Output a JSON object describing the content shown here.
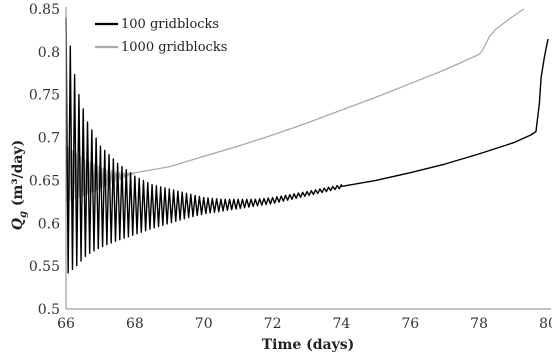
{
  "chart_data": {
    "type": "line",
    "title": "",
    "xlabel": "Time (days)",
    "ylabel_main": "Q",
    "ylabel_sub": "g",
    "ylabel_unit": " (m³/day)",
    "xlim": [
      66,
      80
    ],
    "ylim": [
      0.5,
      0.85
    ],
    "x_ticks": [
      "66",
      "68",
      "70",
      "72",
      "74",
      "76",
      "78",
      "80"
    ],
    "y_ticks": [
      "0.5",
      "0.55",
      "0.6",
      "0.65",
      "0.7",
      "0.75",
      "0.8",
      "0.85"
    ],
    "grid": false,
    "legend_position": "top-left",
    "series": [
      {
        "name": "100 gridblocks",
        "color": "#000000",
        "style": "oscillating",
        "period": 0.125,
        "upper": [
          [
            66.0,
            0.84
          ],
          [
            66.3,
            0.76
          ],
          [
            66.6,
            0.72
          ],
          [
            67.0,
            0.69
          ],
          [
            67.5,
            0.67
          ],
          [
            68.0,
            0.655
          ],
          [
            68.5,
            0.645
          ],
          [
            69.0,
            0.64
          ],
          [
            69.5,
            0.635
          ],
          [
            70.0,
            0.63
          ],
          [
            70.5,
            0.628
          ],
          [
            71.0,
            0.628
          ],
          [
            71.5,
            0.628
          ],
          [
            72.0,
            0.63
          ],
          [
            73.0,
            0.637
          ],
          [
            74.0,
            0.645
          ]
        ],
        "lower": [
          [
            66.0,
            0.54
          ],
          [
            66.3,
            0.55
          ],
          [
            66.6,
            0.563
          ],
          [
            67.0,
            0.572
          ],
          [
            67.5,
            0.58
          ],
          [
            68.0,
            0.587
          ],
          [
            68.5,
            0.594
          ],
          [
            69.0,
            0.6
          ],
          [
            69.5,
            0.606
          ],
          [
            70.0,
            0.611
          ],
          [
            70.5,
            0.614
          ],
          [
            71.0,
            0.617
          ],
          [
            71.5,
            0.62
          ],
          [
            72.0,
            0.623
          ],
          [
            73.0,
            0.632
          ],
          [
            74.0,
            0.641
          ]
        ],
        "tail": [
          [
            74.0,
            0.643
          ],
          [
            75.0,
            0.65
          ],
          [
            76.0,
            0.659
          ],
          [
            77.0,
            0.669
          ],
          [
            78.0,
            0.681
          ],
          [
            79.0,
            0.694
          ],
          [
            79.5,
            0.703
          ],
          [
            79.65,
            0.707
          ],
          [
            79.75,
            0.74
          ],
          [
            79.8,
            0.77
          ],
          [
            79.9,
            0.795
          ],
          [
            80.0,
            0.815
          ]
        ]
      },
      {
        "name": "1000 gridblocks",
        "color": "#aaaaaa",
        "style": "oscillating",
        "period": 0.06,
        "upper": [
          [
            66.0,
            0.69
          ],
          [
            66.5,
            0.675
          ],
          [
            67.0,
            0.665
          ],
          [
            67.5,
            0.659
          ],
          [
            68.0,
            0.659
          ]
        ],
        "lower": [
          [
            66.0,
            0.625
          ],
          [
            66.5,
            0.632
          ],
          [
            67.0,
            0.641
          ],
          [
            67.5,
            0.65
          ],
          [
            68.0,
            0.658
          ]
        ],
        "tail": [
          [
            68.0,
            0.659
          ],
          [
            69.0,
            0.666
          ],
          [
            70.0,
            0.678
          ],
          [
            71.0,
            0.69
          ],
          [
            72.0,
            0.703
          ],
          [
            73.0,
            0.717
          ],
          [
            74.0,
            0.732
          ],
          [
            75.0,
            0.747
          ],
          [
            76.0,
            0.763
          ],
          [
            77.0,
            0.779
          ],
          [
            77.5,
            0.788
          ],
          [
            78.0,
            0.797
          ],
          [
            78.1,
            0.802
          ],
          [
            78.3,
            0.818
          ],
          [
            78.5,
            0.827
          ],
          [
            79.0,
            0.842
          ],
          [
            79.3,
            0.85
          ]
        ]
      }
    ]
  }
}
